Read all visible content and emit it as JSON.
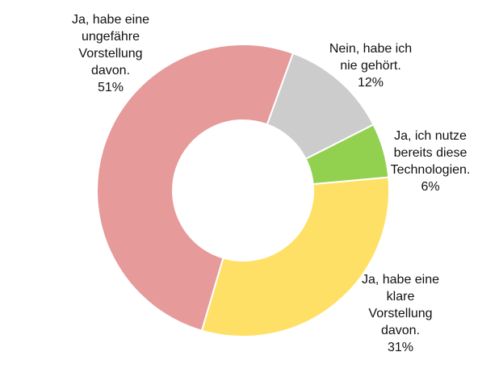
{
  "chart_data": {
    "type": "pie",
    "variant": "donut",
    "title": "",
    "slices": [
      {
        "label": "Nein, habe ich nie gehört.",
        "lines": [
          "Nein, habe ich",
          "nie gehört."
        ],
        "pct_label": "12%",
        "value": 12,
        "color": "#CCCCCC"
      },
      {
        "label": "Ja, ich nutze bereits diese Technologien.",
        "lines": [
          "Ja, ich nutze",
          "bereits diese",
          "Technologien."
        ],
        "pct_label": "6%",
        "value": 6,
        "color": "#92D050"
      },
      {
        "label": "Ja, habe eine klare Vorstellung davon.",
        "lines": [
          "Ja, habe eine",
          "klare",
          "Vorstellung",
          "davon."
        ],
        "pct_label": "31%",
        "value": 31,
        "color": "#FFE066"
      },
      {
        "label": "Ja, habe eine ungefähre Vorstellung davon.",
        "lines": [
          "Ja, habe eine",
          "ungefähre",
          "Vorstellung",
          "davon."
        ],
        "pct_label": "51%",
        "value": 51,
        "color": "#E69A9A"
      }
    ]
  }
}
